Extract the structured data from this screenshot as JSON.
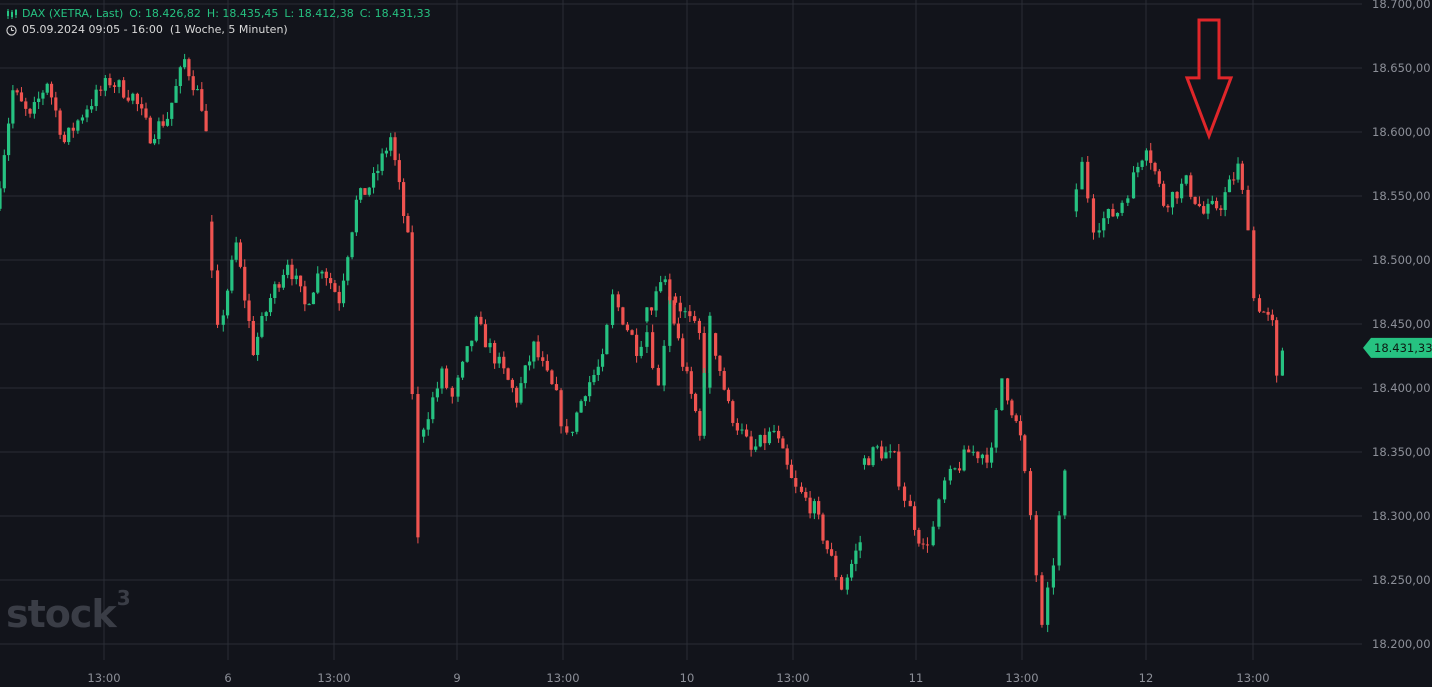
{
  "instrument": {
    "name": "DAX (XETRA, Last)",
    "open_label": "O:",
    "open": "18.426,82",
    "high_label": "H:",
    "high": "18.435,45",
    "low_label": "L:",
    "low": "18.412,38",
    "close_label": "C:",
    "close": "18.431,33",
    "session": "05.09.2024 09:05 - 16:00",
    "timeframe": "(1 Woche, 5 Minuten)",
    "icon": "candlestick-icon",
    "time_icon": "clock-icon"
  },
  "watermark": {
    "text": "stock",
    "sup": "3"
  },
  "colors": {
    "background": "#12141b",
    "grid": "#2a2d36",
    "up": "#26c281",
    "down": "#ef5350",
    "axis_text": "#8c8f98",
    "price_tag": "#26c281",
    "arrow": "#e0262a"
  },
  "chart_data": {
    "type": "candlestick",
    "title": "DAX (XETRA, Last)",
    "interval": "5 Minuten",
    "current_price": 18431.33,
    "current_price_label": "18.431,33",
    "ylim": [
      18190,
      18700
    ],
    "y_ticks": [
      18200,
      18250,
      18300,
      18350,
      18400,
      18450,
      18500,
      18550,
      18600,
      18650,
      18700
    ],
    "y_tick_labels": [
      "18.200,00",
      "18.250,00",
      "18.300,00",
      "18.350,00",
      "18.400,00",
      "18.450,00",
      "18.500,00",
      "18.550,00",
      "18.600,00",
      "18.650,00",
      "18.700,00"
    ],
    "x_ticks": [
      "13:00",
      "6",
      "13:00",
      "9",
      "13:00",
      "10",
      "13:00",
      "11",
      "13:00",
      "12",
      "13:00"
    ],
    "grid": true,
    "annotation": {
      "type": "arrow",
      "direction": "down",
      "target_price": 18597,
      "color": "#e0262a"
    },
    "segments": [
      {
        "day": "05.09",
        "points": [
          [
            0,
            18540
          ],
          [
            1.5,
            18632
          ],
          [
            3,
            18610
          ],
          [
            4.5,
            18640
          ],
          [
            6,
            18592
          ],
          [
            8,
            18620
          ],
          [
            10,
            18640
          ],
          [
            12,
            18628
          ],
          [
            13.5,
            18598
          ],
          [
            15,
            18612
          ],
          [
            16.5,
            18656
          ],
          [
            18,
            18622
          ],
          [
            18.5,
            18598
          ]
        ]
      },
      {
        "day": "06.09",
        "points": [
          [
            18.5,
            18530
          ],
          [
            19.5,
            18443
          ],
          [
            21,
            18512
          ],
          [
            22.5,
            18430
          ],
          [
            24,
            18470
          ],
          [
            25.5,
            18500
          ],
          [
            27,
            18464
          ],
          [
            28.5,
            18496
          ],
          [
            30,
            18470
          ],
          [
            31.5,
            18545
          ],
          [
            33,
            18562
          ],
          [
            34.5,
            18596
          ],
          [
            36,
            18515
          ],
          [
            37,
            18280
          ]
        ]
      },
      {
        "day": "09.09",
        "points": [
          [
            37,
            18362
          ],
          [
            39,
            18410
          ],
          [
            40,
            18392
          ],
          [
            42,
            18450
          ],
          [
            44,
            18418
          ],
          [
            45.5,
            18392
          ],
          [
            47,
            18432
          ],
          [
            49,
            18392
          ],
          [
            50,
            18360
          ],
          [
            51.5,
            18400
          ],
          [
            53,
            18420
          ],
          [
            54,
            18470
          ],
          [
            56,
            18432
          ],
          [
            57,
            18445
          ],
          [
            58,
            18400
          ],
          [
            59,
            18475
          ],
          [
            61.5,
            18440
          ],
          [
            62,
            18405
          ],
          [
            62.5,
            18452
          ]
        ]
      },
      {
        "day": "10.09",
        "points": [
          [
            56.5,
            18452
          ],
          [
            58.5,
            18484
          ],
          [
            60,
            18420
          ],
          [
            61.5,
            18368
          ],
          [
            62.5,
            18445
          ],
          [
            64,
            18385
          ],
          [
            66,
            18350
          ],
          [
            68,
            18366
          ],
          [
            69.5,
            18327
          ],
          [
            70,
            18320
          ],
          [
            71.5,
            18305
          ],
          [
            73,
            18265
          ],
          [
            74,
            18245
          ],
          [
            75.5,
            18280
          ]
        ]
      },
      {
        "day": "11.09",
        "points": [
          [
            75.5,
            18340
          ],
          [
            77,
            18352
          ],
          [
            78.5,
            18344
          ],
          [
            79.5,
            18315
          ],
          [
            81,
            18274
          ],
          [
            82,
            18290
          ],
          [
            83,
            18325
          ],
          [
            85,
            18350
          ],
          [
            87,
            18348
          ],
          [
            88,
            18408
          ],
          [
            89.5,
            18360
          ],
          [
            90.5,
            18300
          ],
          [
            91.5,
            18210
          ],
          [
            92.5,
            18265
          ],
          [
            93.5,
            18330
          ]
        ]
      },
      {
        "day": "12.09",
        "points": [
          [
            94,
            18538
          ],
          [
            95,
            18574
          ],
          [
            96,
            18528
          ],
          [
            98,
            18538
          ],
          [
            99,
            18555
          ],
          [
            100.5,
            18592
          ],
          [
            102,
            18545
          ],
          [
            104,
            18560
          ],
          [
            105.5,
            18536
          ],
          [
            107,
            18544
          ],
          [
            108.5,
            18572
          ],
          [
            109.5,
            18530
          ],
          [
            110,
            18470
          ],
          [
            111.5,
            18448
          ],
          [
            112,
            18405
          ],
          [
            112.5,
            18431
          ]
        ]
      }
    ]
  }
}
